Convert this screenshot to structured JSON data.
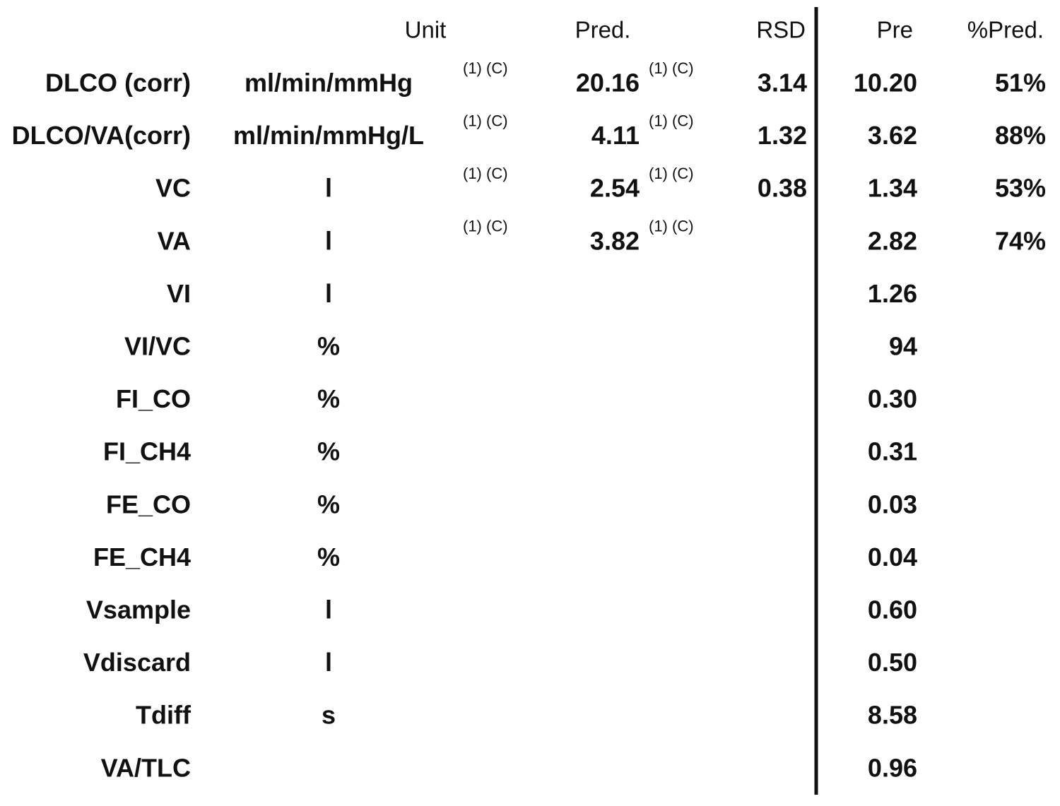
{
  "header": {
    "unit": "Unit",
    "pred": "Pred.",
    "rsd": "RSD",
    "pre": "Pre",
    "pct_pred": "%Pred."
  },
  "rows": [
    {
      "label": "DLCO (corr)",
      "unit": "ml/min/mmHg",
      "unit_ref": "(1) (C)",
      "pred": "20.16",
      "pred_ref": "(1) (C)",
      "rsd": "3.14",
      "pre": "10.20",
      "pct_pred": "51%"
    },
    {
      "label": "DLCO/VA(corr)",
      "unit": "ml/min/mmHg/L",
      "unit_ref": "(1) (C)",
      "pred": "4.11",
      "pred_ref": "(1) (C)",
      "rsd": "1.32",
      "pre": "3.62",
      "pct_pred": "88%"
    },
    {
      "label": "VC",
      "unit": "l",
      "unit_ref": "(1) (C)",
      "pred": "2.54",
      "pred_ref": "(1) (C)",
      "rsd": "0.38",
      "pre": "1.34",
      "pct_pred": "53%"
    },
    {
      "label": "VA",
      "unit": "l",
      "unit_ref": "(1) (C)",
      "pred": "3.82",
      "pred_ref": "(1) (C)",
      "pre": "2.82",
      "pct_pred": "74%"
    },
    {
      "label": "VI",
      "unit": "l",
      "pre": "1.26"
    },
    {
      "label": "VI/VC",
      "unit": "%",
      "pre": "94"
    },
    {
      "label": "FI_CO",
      "unit": "%",
      "pre": "0.30"
    },
    {
      "label": "FI_CH4",
      "unit": "%",
      "pre": "0.31"
    },
    {
      "label": "FE_CO",
      "unit": "%",
      "pre": "0.03"
    },
    {
      "label": "FE_CH4",
      "unit": "%",
      "pre": "0.04"
    },
    {
      "label": "Vsample",
      "unit": "l",
      "pre": "0.60"
    },
    {
      "label": "Vdiscard",
      "unit": "l",
      "pre": "0.50"
    },
    {
      "label": "Tdiff",
      "unit": "s",
      "pre": "8.58"
    },
    {
      "label": "VA/TLC",
      "pre": "0.96"
    }
  ]
}
